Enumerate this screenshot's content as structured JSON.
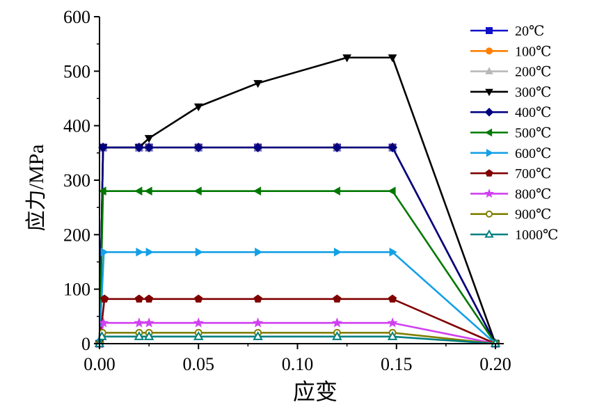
{
  "chart_data": {
    "type": "line",
    "xlabel": "应变",
    "ylabel": "应力/MPa",
    "xlim": [
      0.0,
      0.2
    ],
    "ylim": [
      0,
      600
    ],
    "xticks": [
      0.0,
      0.05,
      0.1,
      0.15,
      0.2
    ],
    "xtick_labels": [
      "0.00",
      "0.05",
      "0.10",
      "0.15",
      "0.20"
    ],
    "yticks": [
      0,
      100,
      200,
      300,
      400,
      500,
      600
    ],
    "ytick_labels": [
      "0",
      "100",
      "200",
      "300",
      "400",
      "500",
      "600"
    ],
    "grid": false,
    "legend_position": "top-right",
    "series": [
      {
        "name": "20℃",
        "color": "#1010c8",
        "marker": "square",
        "x": [
          0,
          0.0018,
          0.02,
          0.025,
          0.05,
          0.08,
          0.12,
          0.148,
          0.2
        ],
        "y": [
          0,
          360,
          360,
          360,
          360,
          360,
          360,
          360,
          0
        ]
      },
      {
        "name": "100℃",
        "color": "#ff8000",
        "marker": "circle",
        "x": [
          0,
          0.0018,
          0.02,
          0.025,
          0.05,
          0.08,
          0.12,
          0.148,
          0.2
        ],
        "y": [
          0,
          360,
          360,
          360,
          360,
          360,
          360,
          360,
          0
        ]
      },
      {
        "name": "200℃",
        "color": "#b8b8b8",
        "marker": "triangle-up",
        "x": [
          0,
          0.0018,
          0.02,
          0.025,
          0.05,
          0.08,
          0.12,
          0.148,
          0.2
        ],
        "y": [
          0,
          360,
          360,
          360,
          360,
          360,
          360,
          360,
          0
        ]
      },
      {
        "name": "300℃",
        "color": "#000000",
        "marker": "triangle-down",
        "x": [
          0,
          0.0018,
          0.02,
          0.025,
          0.05,
          0.08,
          0.125,
          0.148,
          0.2
        ],
        "y": [
          0,
          360,
          360,
          377,
          435,
          478,
          525,
          525,
          0
        ]
      },
      {
        "name": "400℃",
        "color": "#000080",
        "marker": "diamond",
        "x": [
          0,
          0.0018,
          0.02,
          0.025,
          0.05,
          0.08,
          0.12,
          0.148,
          0.2
        ],
        "y": [
          0,
          360,
          360,
          360,
          360,
          360,
          360,
          360,
          0
        ]
      },
      {
        "name": "500℃",
        "color": "#007800",
        "marker": "triangle-left",
        "x": [
          0,
          0.0018,
          0.02,
          0.025,
          0.05,
          0.08,
          0.12,
          0.148,
          0.2
        ],
        "y": [
          0,
          280,
          280,
          280,
          280,
          280,
          280,
          280,
          0
        ]
      },
      {
        "name": "600℃",
        "color": "#14a0e6",
        "marker": "triangle-right",
        "x": [
          0,
          0.0022,
          0.02,
          0.025,
          0.05,
          0.08,
          0.12,
          0.148,
          0.2
        ],
        "y": [
          0,
          168,
          168,
          168,
          168,
          168,
          168,
          168,
          0
        ]
      },
      {
        "name": "700℃",
        "color": "#800000",
        "marker": "pentagon",
        "x": [
          0,
          0.0025,
          0.02,
          0.025,
          0.05,
          0.08,
          0.12,
          0.148,
          0.2
        ],
        "y": [
          0,
          82,
          82,
          82,
          82,
          82,
          82,
          82,
          0
        ]
      },
      {
        "name": "800℃",
        "color": "#d040f0",
        "marker": "star",
        "x": [
          0,
          0.002,
          0.02,
          0.025,
          0.05,
          0.08,
          0.12,
          0.148,
          0.2
        ],
        "y": [
          0,
          38,
          38,
          38,
          38,
          38,
          38,
          38,
          0
        ]
      },
      {
        "name": "900℃",
        "color": "#808000",
        "marker": "open-circle",
        "x": [
          0,
          0.0015,
          0.02,
          0.025,
          0.05,
          0.08,
          0.12,
          0.148,
          0.2
        ],
        "y": [
          0,
          20,
          20,
          20,
          20,
          20,
          20,
          20,
          0
        ]
      },
      {
        "name": "1000℃",
        "color": "#008080",
        "marker": "open-triangle",
        "x": [
          0,
          0.0012,
          0.02,
          0.025,
          0.05,
          0.08,
          0.12,
          0.148,
          0.2
        ],
        "y": [
          0,
          13,
          13,
          13,
          13,
          13,
          13,
          13,
          0
        ]
      }
    ]
  }
}
